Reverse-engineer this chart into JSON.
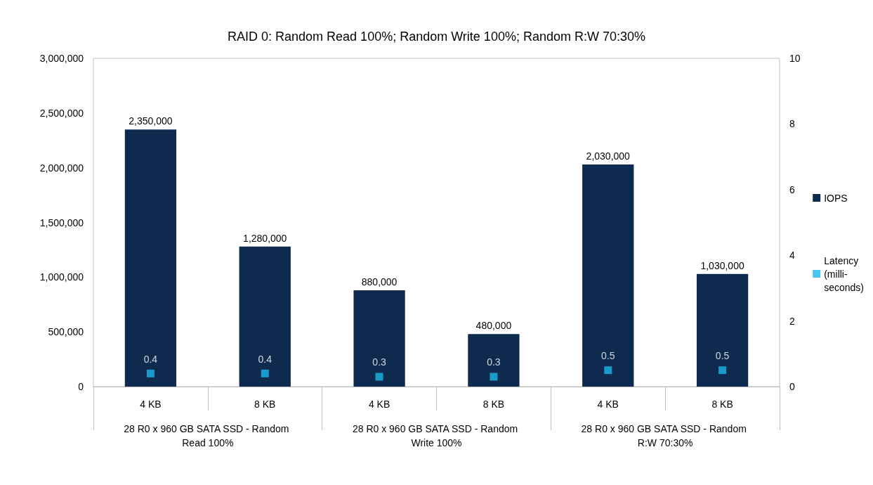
{
  "chart_data": {
    "type": "bar",
    "title": "RAID 0: Random Read 100%; Random Write 100%; Random R:W 70:30%",
    "categories": [
      "4 KB",
      "8 KB",
      "4 KB",
      "8 KB",
      "4 KB",
      "8 KB"
    ],
    "annotations": [
      "28 R0 x 960 GB SATA SSD - Random Read 100%",
      "28 R0 x 960 GB SATA SSD - Random Write 100%",
      "28 R0 x 960 GB SATA SSD - Random R:W 70:30%"
    ],
    "series": [
      {
        "name": "IOPS",
        "color": "#0f2a4f",
        "values": [
          2350000,
          1280000,
          880000,
          480000,
          2030000,
          1030000
        ],
        "value_labels": [
          "2,350,000",
          "1,280,000",
          "880,000",
          "480,000",
          "2,030,000",
          "1,030,000"
        ]
      },
      {
        "name": "Latency (milli-seconds)",
        "type": "scatter",
        "axis": "y2",
        "color": "#1ab8e8",
        "values": [
          0.4,
          0.4,
          0.3,
          0.3,
          0.5,
          0.5
        ]
      }
    ],
    "ylim": [
      0,
      3000000
    ],
    "yticks": [
      0,
      {
        "value": 500000,
        "label": "500,000"
      },
      {
        "value": 1000000,
        "label": "1,000,000"
      },
      {
        "value": 1500000,
        "label": "1,500,000"
      },
      {
        "value": 2000000,
        "label": "2,000,000"
      },
      {
        "value": 2500000,
        "label": "2,500,000"
      },
      {
        "value": 3000000,
        "label": "3,000,000"
      }
    ],
    "y2lim": [
      0,
      10
    ],
    "y2ticks": [
      0,
      2,
      4,
      6,
      8,
      10
    ],
    "data_labels": true,
    "marker": "square",
    "legend": "right",
    "grid": false
  }
}
